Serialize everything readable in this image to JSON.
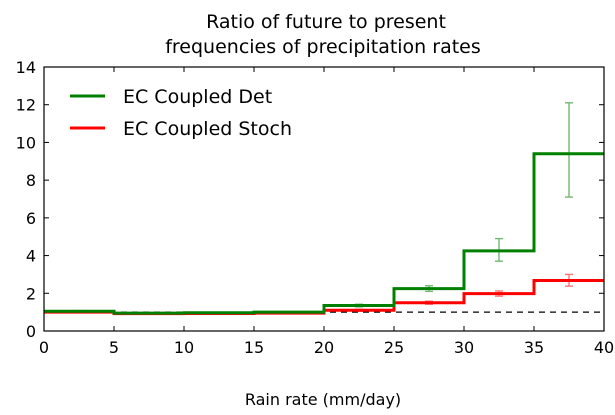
{
  "chart_data": {
    "type": "line",
    "step": "post",
    "title": [
      "Ratio of future to present",
      "frequencies of precipitation rates"
    ],
    "xlabel": "Rain rate (mm/day)",
    "ylabel": "",
    "xlim": [
      0,
      40
    ],
    "ylim": [
      0,
      14
    ],
    "xticks": [
      "0",
      "5",
      "10",
      "15",
      "20",
      "25",
      "30",
      "35",
      "40"
    ],
    "yticks": [
      "0",
      "2",
      "4",
      "6",
      "8",
      "10",
      "12",
      "14"
    ],
    "reference_line": {
      "y": 1,
      "style": "dashed",
      "color": "#000000"
    },
    "legend_position": "upper-left",
    "bin_edges": [
      0,
      5,
      10,
      15,
      20,
      25,
      30,
      35,
      40
    ],
    "series": [
      {
        "name": "EC Coupled Det",
        "color": "#008000",
        "values": [
          1.05,
          0.95,
          0.97,
          1.0,
          1.35,
          2.25,
          4.25,
          9.4
        ],
        "errorbars": [
          {
            "x": 2.5,
            "low": 1.02,
            "high": 1.08
          },
          {
            "x": 7.5,
            "low": 0.93,
            "high": 0.97
          },
          {
            "x": 12.5,
            "low": 0.95,
            "high": 0.99
          },
          {
            "x": 17.5,
            "low": 0.98,
            "high": 1.02
          },
          {
            "x": 22.5,
            "low": 1.28,
            "high": 1.42
          },
          {
            "x": 27.5,
            "low": 2.1,
            "high": 2.4
          },
          {
            "x": 32.5,
            "low": 3.7,
            "high": 4.9
          },
          {
            "x": 37.5,
            "low": 7.1,
            "high": 12.1
          }
        ]
      },
      {
        "name": "EC Coupled Stoch",
        "color": "#ff0000",
        "values": [
          1.0,
          0.92,
          0.93,
          0.95,
          1.1,
          1.5,
          1.98,
          2.68
        ],
        "errorbars": [
          {
            "x": 2.5,
            "low": 0.98,
            "high": 1.02
          },
          {
            "x": 7.5,
            "low": 0.9,
            "high": 0.94
          },
          {
            "x": 12.5,
            "low": 0.91,
            "high": 0.95
          },
          {
            "x": 17.5,
            "low": 0.93,
            "high": 0.97
          },
          {
            "x": 22.5,
            "low": 1.05,
            "high": 1.15
          },
          {
            "x": 27.5,
            "low": 1.42,
            "high": 1.58
          },
          {
            "x": 32.5,
            "low": 1.85,
            "high": 2.12
          },
          {
            "x": 37.5,
            "low": 2.38,
            "high": 3.0
          }
        ]
      }
    ]
  }
}
